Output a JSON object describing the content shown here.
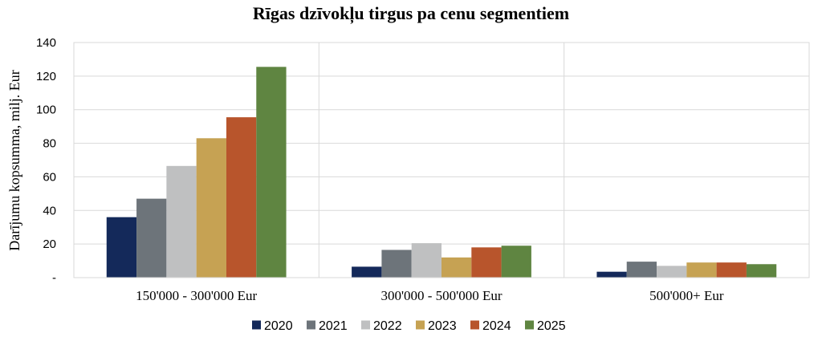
{
  "chart_data": {
    "type": "bar",
    "title": "Rīgas dzīvokļu tirgus pa cenu segmentiem",
    "ylabel": "Darījumu kopsumma, milj. Eur",
    "xlabel": "",
    "ylim": [
      0,
      140
    ],
    "yticks": [
      0,
      20,
      40,
      60,
      80,
      100,
      120,
      140
    ],
    "ytick_labels": [
      "-",
      "20",
      "40",
      "60",
      "80",
      "100",
      "120",
      "140"
    ],
    "grid": true,
    "legend_position": "bottom",
    "categories": [
      "150'000 - 300'000 Eur",
      "300'000 - 500'000 Eur",
      "500'000+ Eur"
    ],
    "series": [
      {
        "name": "2020",
        "color": "#14295a",
        "values": [
          36,
          6.5,
          3.5
        ]
      },
      {
        "name": "2021",
        "color": "#6d747a",
        "values": [
          47,
          16.5,
          9.5
        ]
      },
      {
        "name": "2022",
        "color": "#bfc0c1",
        "values": [
          66.5,
          20.5,
          7
        ]
      },
      {
        "name": "2023",
        "color": "#c6a253",
        "values": [
          83,
          12,
          9
        ]
      },
      {
        "name": "2024",
        "color": "#b8552c",
        "values": [
          95.5,
          18,
          9
        ]
      },
      {
        "name": "2025",
        "color": "#5f8541",
        "values": [
          125.5,
          19,
          8
        ]
      }
    ]
  }
}
